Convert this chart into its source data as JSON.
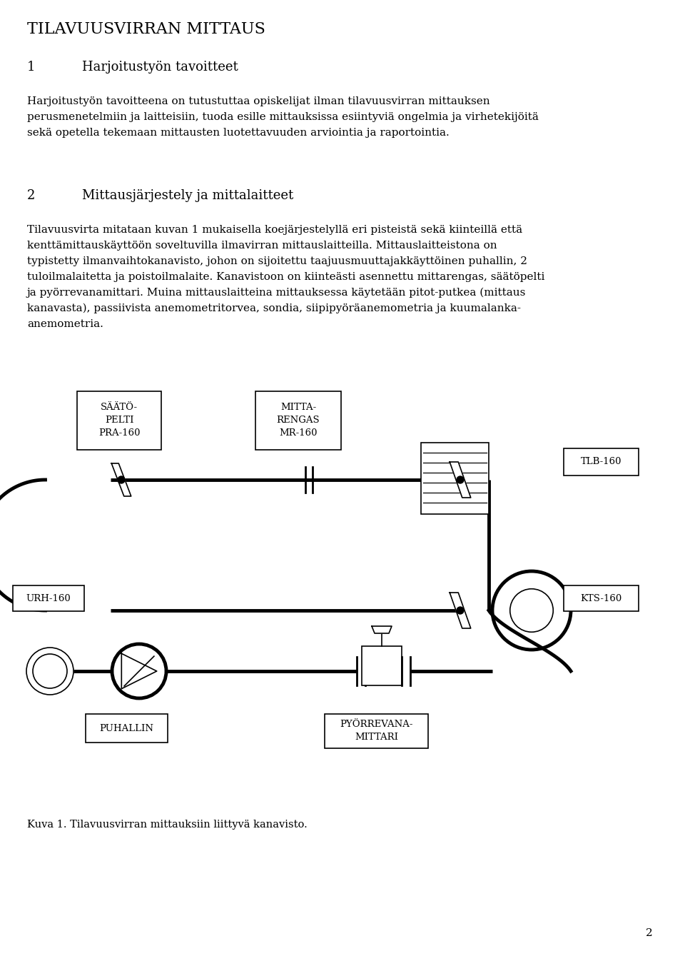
{
  "title": "TILAVUUSVIRRAN MITTAUS",
  "section1_num": "1",
  "section1_title": "Harjoitustyön tavoitteet",
  "section2_num": "2",
  "section2_title": "Mittausjärjestely ja mittalaitteet",
  "body1_line1": "Harjoitustyön tavoitteena on tutustuttaa opiskelijat ilman tilavuusvirran mittauksen",
  "body1_line2": "perusmenetelmiin ja laitteisiin, tuoda esille mittauksissa esiintyviä ongelmia ja virhetekijöitä",
  "body1_line3": "sekä opetella tekemaan mittausten luotettavuuden arviointia ja raportointia.",
  "body2_line1": "Tilavuusvirta mitataan kuvan 1 mukaisella koejärjestelyllä eri pisteistä sekä kiinteillä että",
  "body2_line2": "kenttämittauskäyttöön soveltuvilla ilmavirran mittauslaitteilla. Mittauslaitteistona on",
  "body2_line3": "typistetty ilmanvaihtokanavisto, johon on sijoitettu taajuusmuuttajakkäyttöinen puhallin, 2",
  "body2_line4": "tuloilmalaitetta ja poistoilmalaite. Kanavistoon on kiinteästi asennettu mittarengas, säätöpelti",
  "body2_line5": "ja pyörrevanamittari. Muina mittauslaitteina mittauksessa käytetään pitot-putkea (mittaus",
  "body2_line6": "kanavasta), passiivista anemometritorvea, sondia, siipipyöräanemometria ja kuumalanka-",
  "body2_line7": "anemometria.",
  "label_saato": "SÄÄTÖ-\nPELTI\nPRA-160",
  "label_mitta": "MITTA-\nRENGAS\nMR-160",
  "label_tlb": "TLB-160",
  "label_urh": "URH-160",
  "label_kts": "KTS-160",
  "label_puhallin": "PUHALLIN",
  "label_pyorre": "PYÖRREVANA-\nMITTARI",
  "caption": "Kuva 1. Tilavuusvirran mittauksiin liittyvä kanavisto.",
  "page_num": "2",
  "bg_color": "#ffffff",
  "text_color": "#000000",
  "line_color": "#000000"
}
